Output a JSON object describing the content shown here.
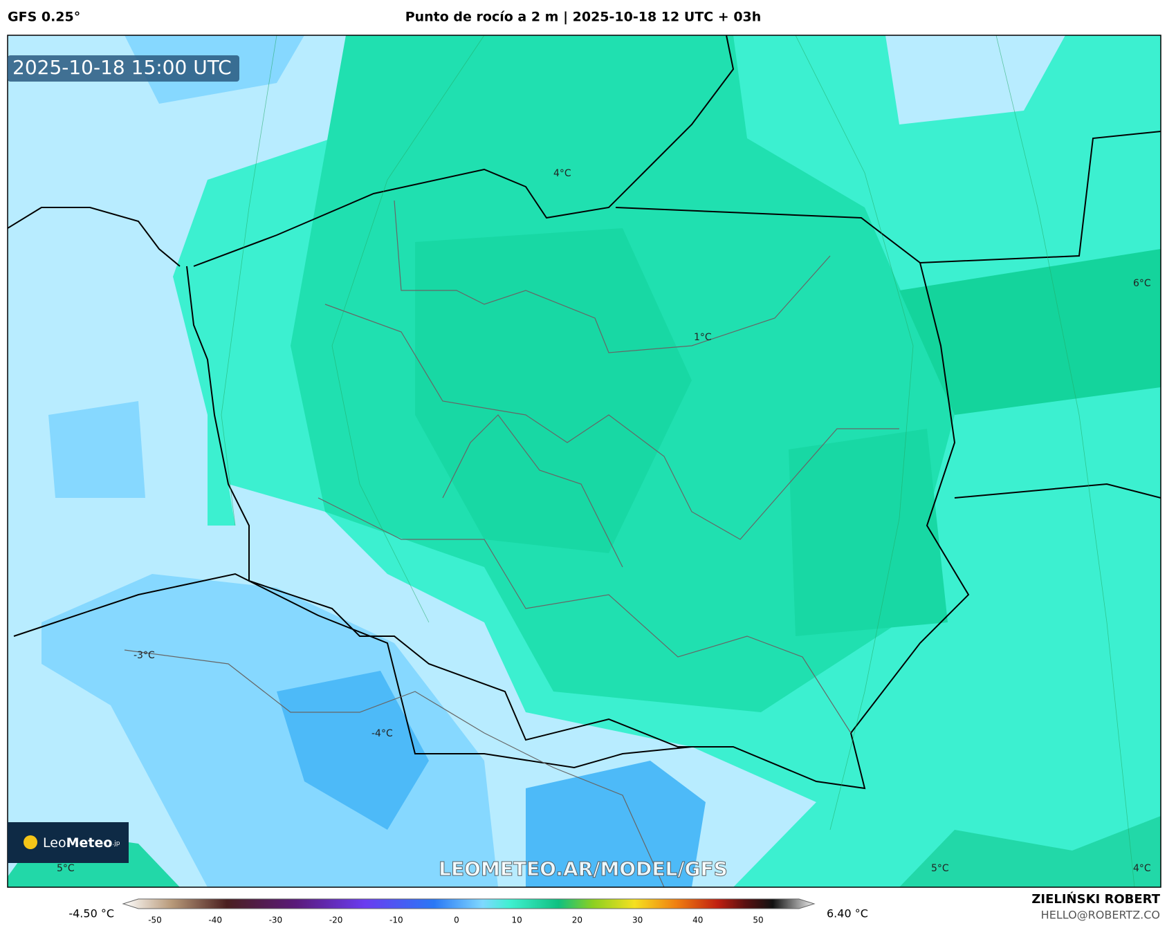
{
  "header": {
    "model": "GFS 0.25°",
    "title": "Punto de rocío a 2 m | 2025-10-18 12 UTC + 03h"
  },
  "map": {
    "timestamp": "2025-10-18 15:00 UTC",
    "watermark": "LEOMETEO.AR/MODEL/GFS",
    "logo": {
      "name": "Leo",
      "bold": "Meteo",
      "suffix": ".jp"
    },
    "contour_labels": [
      {
        "text": "4°C"
      },
      {
        "text": "1°C"
      },
      {
        "text": "6°C"
      },
      {
        "text": "-3°C"
      },
      {
        "text": "-4°C"
      },
      {
        "text": "5°C"
      },
      {
        "text": "5°C"
      },
      {
        "text": "4°C"
      }
    ]
  },
  "colorbar": {
    "min_label": "-4.50 °C",
    "max_label": "6.40 °C",
    "ticks": [
      -50,
      -40,
      -30,
      -20,
      -10,
      0,
      10,
      20,
      30,
      40,
      50
    ]
  },
  "footer": {
    "author": "ZIELIŃSKI ROBERT",
    "email": "HELLO@ROBERTZ.CO"
  }
}
